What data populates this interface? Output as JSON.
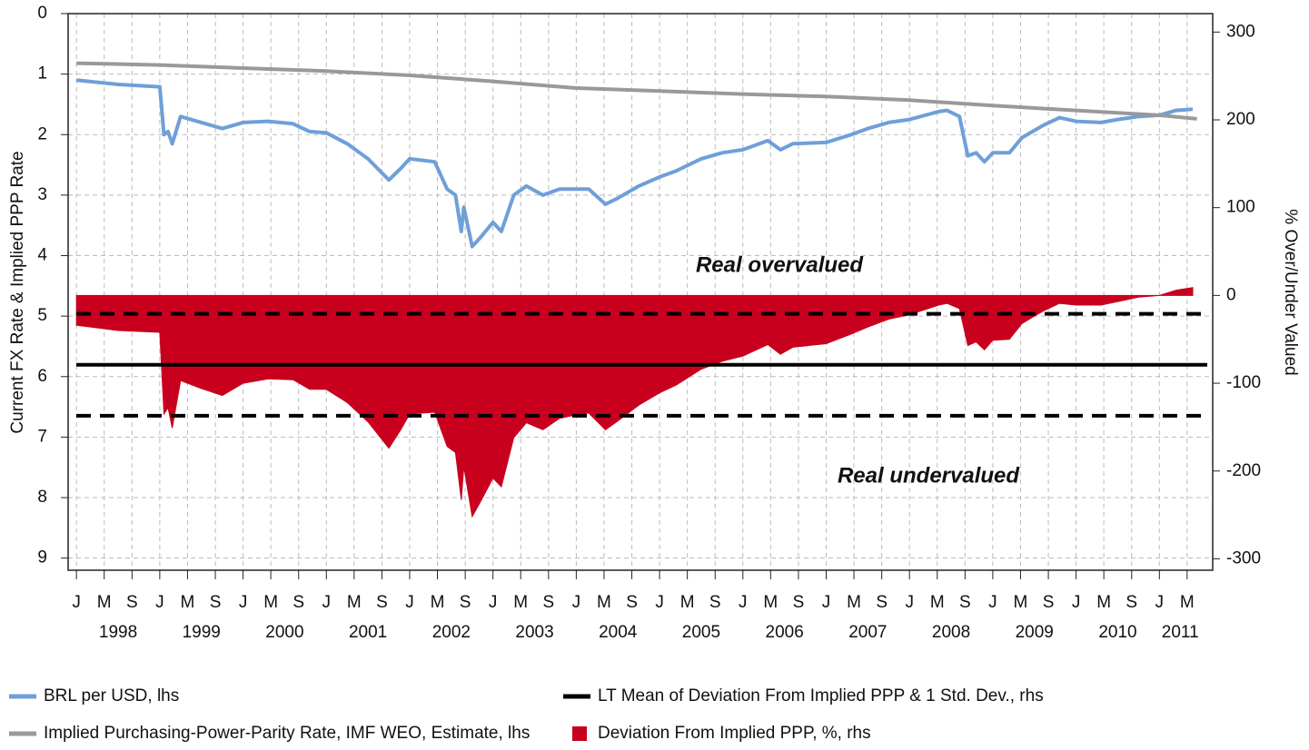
{
  "chart_data": {
    "type": "line",
    "y_label": "Current FX Rate & Implied PPP Rate",
    "y2_label": "% Over/Under Valued",
    "annotations": [
      {
        "text": "Real overvalued"
      },
      {
        "text": "Real undervalued"
      }
    ],
    "xlim": [
      1997.9,
      2011.64
    ],
    "ylim": [
      0,
      9.2
    ],
    "y_inverted": true,
    "yticks": [
      0,
      1,
      2,
      3,
      4,
      5,
      6,
      7,
      8,
      9
    ],
    "y2lim": [
      -313,
      321
    ],
    "y2ticks": [
      300,
      200,
      100,
      0,
      -100,
      -200,
      -300
    ],
    "grid": true,
    "xticks": [
      {
        "value": 1998,
        "label": "J"
      },
      {
        "value": 1998.333,
        "label": "M"
      },
      {
        "value": 1998.667,
        "label": "S"
      },
      {
        "value": 1999,
        "label": "J"
      },
      {
        "value": 1999.333,
        "label": "M"
      },
      {
        "value": 1999.667,
        "label": "S"
      },
      {
        "value": 2000,
        "label": "J"
      },
      {
        "value": 2000.333,
        "label": "M"
      },
      {
        "value": 2000.667,
        "label": "S"
      },
      {
        "value": 2001,
        "label": "J"
      },
      {
        "value": 2001.333,
        "label": "M"
      },
      {
        "value": 2001.667,
        "label": "S"
      },
      {
        "value": 2002,
        "label": "J"
      },
      {
        "value": 2002.333,
        "label": "M"
      },
      {
        "value": 2002.667,
        "label": "S"
      },
      {
        "value": 2003,
        "label": "J"
      },
      {
        "value": 2003.333,
        "label": "M"
      },
      {
        "value": 2003.667,
        "label": "S"
      },
      {
        "value": 2004,
        "label": "J"
      },
      {
        "value": 2004.333,
        "label": "M"
      },
      {
        "value": 2004.667,
        "label": "S"
      },
      {
        "value": 2005,
        "label": "J"
      },
      {
        "value": 2005.333,
        "label": "M"
      },
      {
        "value": 2005.667,
        "label": "S"
      },
      {
        "value": 2006,
        "label": "J"
      },
      {
        "value": 2006.333,
        "label": "M"
      },
      {
        "value": 2006.667,
        "label": "S"
      },
      {
        "value": 2007,
        "label": "J"
      },
      {
        "value": 2007.333,
        "label": "M"
      },
      {
        "value": 2007.667,
        "label": "S"
      },
      {
        "value": 2008,
        "label": "J"
      },
      {
        "value": 2008.333,
        "label": "M"
      },
      {
        "value": 2008.667,
        "label": "S"
      },
      {
        "value": 2009,
        "label": "J"
      },
      {
        "value": 2009.333,
        "label": "M"
      },
      {
        "value": 2009.667,
        "label": "S"
      },
      {
        "value": 2010,
        "label": "J"
      },
      {
        "value": 2010.333,
        "label": "M"
      },
      {
        "value": 2010.667,
        "label": "S"
      },
      {
        "value": 2011,
        "label": "J"
      },
      {
        "value": 2011.333,
        "label": "M"
      }
    ],
    "year_labels": [
      {
        "value": 1998.5,
        "label": "1998"
      },
      {
        "value": 1999.5,
        "label": "1999"
      },
      {
        "value": 2000.5,
        "label": "2000"
      },
      {
        "value": 2001.5,
        "label": "2001"
      },
      {
        "value": 2002.5,
        "label": "2002"
      },
      {
        "value": 2003.5,
        "label": "2003"
      },
      {
        "value": 2004.5,
        "label": "2004"
      },
      {
        "value": 2005.5,
        "label": "2005"
      },
      {
        "value": 2006.5,
        "label": "2006"
      },
      {
        "value": 2007.5,
        "label": "2007"
      },
      {
        "value": 2008.5,
        "label": "2008"
      },
      {
        "value": 2009.5,
        "label": "2009"
      },
      {
        "value": 2010.5,
        "label": "2010"
      },
      {
        "value": 2011.25,
        "label": "2011"
      }
    ],
    "series": [
      {
        "name": "BRL per USD, lhs",
        "color": "#6f9fd8",
        "kind": "line",
        "axis": "y",
        "x": [
          1998.0,
          1998.5,
          1999.0,
          1999.05,
          1999.1,
          1999.15,
          1999.25,
          1999.5,
          1999.75,
          2000.0,
          2000.3,
          2000.6,
          2000.8,
          2001.0,
          2001.25,
          2001.5,
          2001.75,
          2001.9,
          2002.0,
          2002.3,
          2002.45,
          2002.55,
          2002.62,
          2002.65,
          2002.75,
          2002.85,
          2003.0,
          2003.1,
          2003.25,
          2003.4,
          2003.6,
          2003.8,
          2004.0,
          2004.15,
          2004.35,
          2004.5,
          2004.75,
          2005.0,
          2005.2,
          2005.5,
          2005.75,
          2006.0,
          2006.3,
          2006.45,
          2006.6,
          2007.0,
          2007.3,
          2007.5,
          2007.75,
          2008.0,
          2008.35,
          2008.45,
          2008.6,
          2008.7,
          2008.8,
          2008.9,
          2009.0,
          2009.2,
          2009.35,
          2009.6,
          2009.8,
          2010.0,
          2010.3,
          2010.5,
          2010.75,
          2011.0,
          2011.2,
          2011.4
        ],
        "values": [
          1.1,
          1.17,
          1.21,
          2.0,
          1.95,
          2.15,
          1.7,
          1.8,
          1.9,
          1.8,
          1.78,
          1.82,
          1.95,
          1.97,
          2.15,
          2.4,
          2.75,
          2.55,
          2.4,
          2.45,
          2.9,
          3.0,
          3.6,
          3.2,
          3.85,
          3.7,
          3.45,
          3.6,
          3.0,
          2.85,
          3.0,
          2.9,
          2.9,
          2.9,
          3.15,
          3.05,
          2.85,
          2.7,
          2.6,
          2.4,
          2.3,
          2.25,
          2.1,
          2.25,
          2.15,
          2.13,
          2.0,
          1.9,
          1.8,
          1.75,
          1.62,
          1.6,
          1.7,
          2.35,
          2.3,
          2.45,
          2.3,
          2.3,
          2.05,
          1.85,
          1.72,
          1.78,
          1.8,
          1.75,
          1.7,
          1.68,
          1.6,
          1.58
        ]
      },
      {
        "name": "Implied Purchasing-Power-Parity Rate, IMF WEO, Estimate, lhs",
        "color": "#999999",
        "kind": "line",
        "axis": "y",
        "x": [
          1998.0,
          1999.0,
          2000.0,
          2001.0,
          2002.0,
          2003.0,
          2004.0,
          2005.0,
          2006.0,
          2007.0,
          2008.0,
          2009.0,
          2010.0,
          2011.0,
          2011.45
        ],
        "values": [
          0.82,
          0.85,
          0.9,
          0.95,
          1.02,
          1.12,
          1.23,
          1.28,
          1.33,
          1.37,
          1.43,
          1.52,
          1.6,
          1.68,
          1.74
        ]
      },
      {
        "name": "LT Mean of Deviation From Implied PPP & 1 Std. Dev., rhs",
        "color": "#000000",
        "kind": "hline",
        "axis": "y2",
        "values": [
          -79
        ],
        "bands": [
          -21,
          -137
        ]
      },
      {
        "name": "Deviation From Implied PPP, %, rhs",
        "color": "#c8001e",
        "kind": "area",
        "axis": "y2",
        "x": [
          1998.0,
          1998.5,
          1999.0,
          1999.05,
          1999.1,
          1999.15,
          1999.25,
          1999.5,
          1999.75,
          2000.0,
          2000.3,
          2000.6,
          2000.8,
          2001.0,
          2001.25,
          2001.5,
          2001.75,
          2001.9,
          2002.0,
          2002.3,
          2002.45,
          2002.55,
          2002.62,
          2002.65,
          2002.75,
          2002.85,
          2003.0,
          2003.1,
          2003.25,
          2003.4,
          2003.6,
          2003.8,
          2004.0,
          2004.15,
          2004.35,
          2004.5,
          2004.75,
          2005.0,
          2005.2,
          2005.5,
          2005.75,
          2006.0,
          2006.3,
          2006.45,
          2006.6,
          2007.0,
          2007.3,
          2007.5,
          2007.75,
          2008.0,
          2008.35,
          2008.45,
          2008.6,
          2008.7,
          2008.8,
          2008.9,
          2009.0,
          2009.2,
          2009.35,
          2009.6,
          2009.8,
          2010.0,
          2010.3,
          2010.5,
          2010.75,
          2011.0,
          2011.2,
          2011.4
        ],
        "values": [
          -34,
          -40,
          -42,
          -135,
          -128,
          -151,
          -97,
          -106,
          -114,
          -100,
          -95,
          -96,
          -107,
          -107,
          -122,
          -144,
          -174,
          -152,
          -135,
          -133,
          -172,
          -179,
          -233,
          -195,
          -252,
          -235,
          -208,
          -218,
          -162,
          -145,
          -153,
          -140,
          -136,
          -134,
          -153,
          -143,
          -125,
          -111,
          -102,
          -84,
          -75,
          -69,
          -56,
          -67,
          -59,
          -55,
          -44,
          -36,
          -27,
          -22,
          -11,
          -9,
          -15,
          -57,
          -53,
          -62,
          -51,
          -50,
          -32,
          -18,
          -9,
          -11,
          -11,
          -7,
          -2,
          0,
          6,
          9
        ]
      }
    ]
  }
}
